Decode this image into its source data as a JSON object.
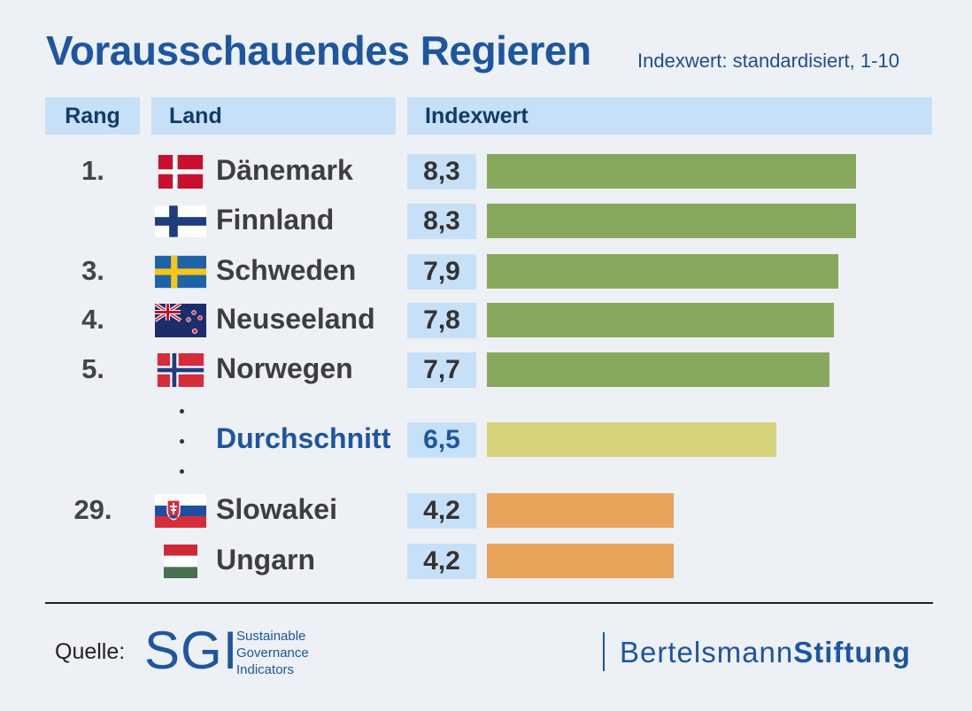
{
  "title": "Vorausschauendes Regieren",
  "subtitle": "Indexwert: standardisiert, 1-10",
  "headers": {
    "rank": "Rang",
    "country": "Land",
    "value": "Indexwert"
  },
  "chart_data": {
    "type": "bar",
    "orientation": "horizontal",
    "xlim": [
      0,
      10
    ],
    "rows": [
      {
        "rank": "1.",
        "country": "Dänemark",
        "flag": "denmark-flag",
        "value": 8.3,
        "label": "8,3",
        "color": "#88a85e"
      },
      {
        "rank": "",
        "country": "Finnland",
        "flag": "finland-flag",
        "value": 8.3,
        "label": "8,3",
        "color": "#88a85e"
      },
      {
        "rank": "3.",
        "country": "Schweden",
        "flag": "sweden-flag",
        "value": 7.9,
        "label": "7,9",
        "color": "#88a85e"
      },
      {
        "rank": "4.",
        "country": "Neuseeland",
        "flag": "new-zealand-flag",
        "value": 7.8,
        "label": "7,8",
        "color": "#88a85e"
      },
      {
        "rank": "5.",
        "country": "Norwegen",
        "flag": "norway-flag",
        "value": 7.7,
        "label": "7,7",
        "color": "#88a85e"
      },
      {
        "rank": "",
        "country": "Durchschnitt",
        "flag": "",
        "value": 6.5,
        "label": "6,5",
        "color": "#d6d47a",
        "average": true
      },
      {
        "rank": "29.",
        "country": "Slowakei",
        "flag": "slovakia-flag",
        "value": 4.2,
        "label": "4,2",
        "color": "#e9a35b"
      },
      {
        "rank": "",
        "country": "Ungarn",
        "flag": "hungary-flag",
        "value": 4.2,
        "label": "4,2",
        "color": "#e9a35b"
      }
    ]
  },
  "footer": {
    "source_label": "Quelle:",
    "sgi_logo": "SGI",
    "sgi_lines": [
      "Sustainable",
      "Governance",
      "Indicators"
    ],
    "brand_regular": "Bertelsmann",
    "brand_bold": "Stiftung"
  }
}
